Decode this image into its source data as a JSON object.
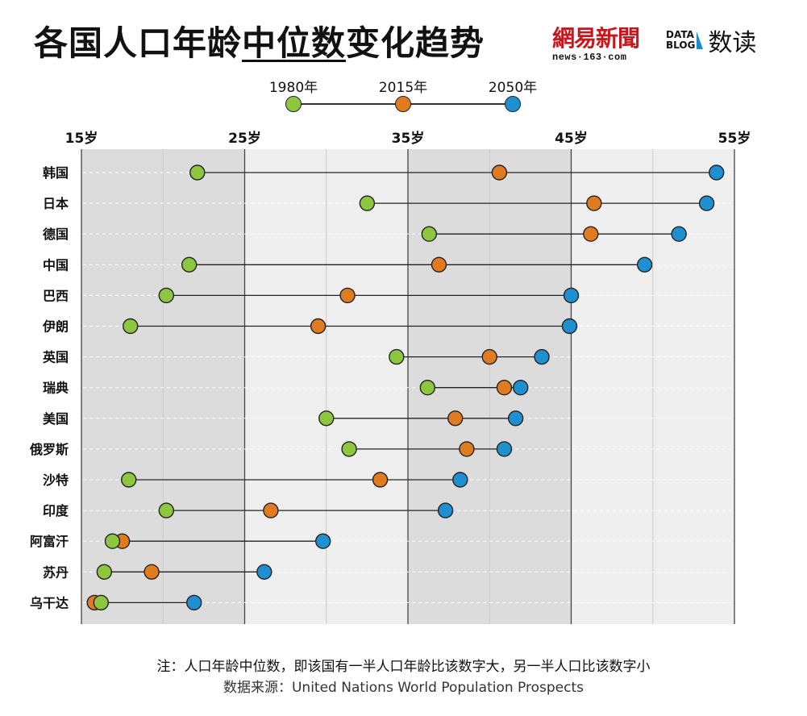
{
  "header": {
    "title_pre": "各国人口年龄",
    "title_ul": "中位数",
    "title_post": "变化趋势",
    "logo_163_cn": "網易新聞",
    "logo_163_sub": "news·163·com",
    "logo_datablog_line1": "DATA",
    "logo_datablog_line2": "BLOG",
    "logo_shudu": "数读"
  },
  "legend": {
    "items": [
      {
        "label": "1980年",
        "color": "#8dc63f"
      },
      {
        "label": "2015年",
        "color": "#e07b20"
      },
      {
        "label": "2050年",
        "color": "#1e90d0"
      }
    ]
  },
  "chart_data": {
    "type": "dumbbell",
    "title": "各国人口年龄中位数变化趋势",
    "xlim": [
      15,
      55
    ],
    "xticks": [
      "15岁",
      "25岁",
      "35岁",
      "45岁",
      "55岁"
    ],
    "series": [
      {
        "name": "1980年",
        "color": "#8dc63f"
      },
      {
        "name": "2015年",
        "color": "#e07b20"
      },
      {
        "name": "2050年",
        "color": "#1e90d0"
      }
    ],
    "rows": [
      {
        "country": "韩国",
        "y1980": 22.1,
        "y2015": 40.6,
        "y2050": 53.9
      },
      {
        "country": "日本",
        "y1980": 32.5,
        "y2015": 46.4,
        "y2050": 53.3
      },
      {
        "country": "德国",
        "y1980": 36.3,
        "y2015": 46.2,
        "y2050": 51.6
      },
      {
        "country": "中国",
        "y1980": 21.6,
        "y2015": 36.9,
        "y2050": 49.5
      },
      {
        "country": "巴西",
        "y1980": 20.2,
        "y2015": 31.3,
        "y2050": 45.0
      },
      {
        "country": "伊朗",
        "y1980": 18.0,
        "y2015": 29.5,
        "y2050": 44.9
      },
      {
        "country": "英国",
        "y1980": 34.3,
        "y2015": 40.0,
        "y2050": 43.2
      },
      {
        "country": "瑞典",
        "y1980": 36.2,
        "y2015": 40.9,
        "y2050": 41.9
      },
      {
        "country": "美国",
        "y1980": 30.0,
        "y2015": 37.9,
        "y2050": 41.6
      },
      {
        "country": "俄罗斯",
        "y1980": 31.4,
        "y2015": 38.6,
        "y2050": 40.9
      },
      {
        "country": "沙特",
        "y1980": 17.9,
        "y2015": 33.3,
        "y2050": 38.2
      },
      {
        "country": "印度",
        "y1980": 20.2,
        "y2015": 26.6,
        "y2050": 37.3
      },
      {
        "country": "阿富汗",
        "y1980": 16.9,
        "y2015": 17.5,
        "y2050": 29.8
      },
      {
        "country": "苏丹",
        "y1980": 16.4,
        "y2015": 19.3,
        "y2050": 26.2
      },
      {
        "country": "乌干达",
        "y1980": 16.2,
        "y2015": 15.8,
        "y2050": 21.9
      }
    ]
  },
  "footer": {
    "note": "注：人口年龄中位数，即该国有一半人口年龄比该数字大，另一半人口比该数字小",
    "source": "数据来源：United Nations World Population Prospects"
  }
}
